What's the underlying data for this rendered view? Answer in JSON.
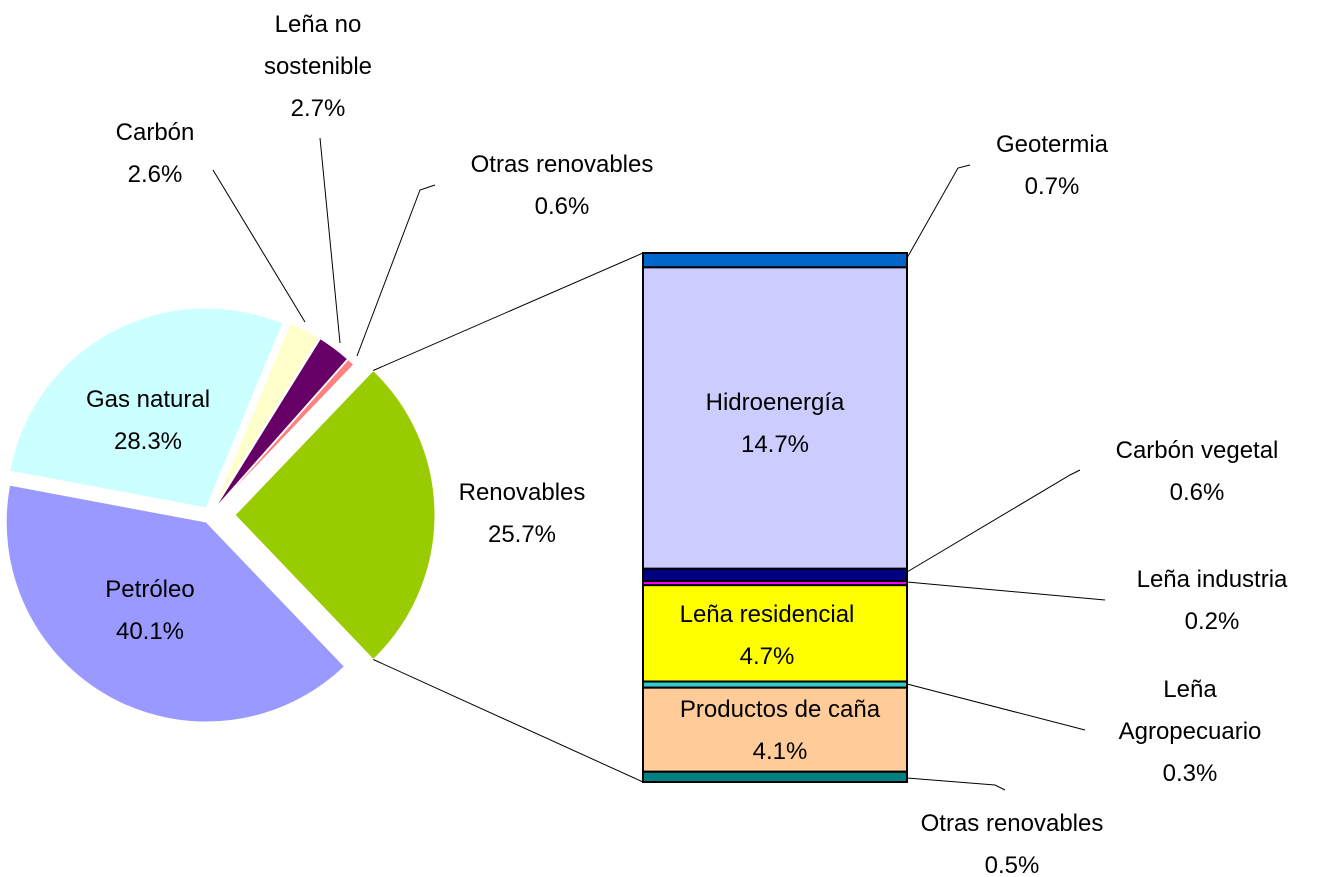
{
  "chart_data": [
    {
      "type": "pie",
      "categories": [
        "Renovables",
        "Otras renovables",
        "Leña no sostenible",
        "Carbón",
        "Gas natural",
        "Petróleo"
      ],
      "values": [
        25.7,
        0.6,
        2.7,
        2.6,
        28.3,
        40.1
      ],
      "value_labels": [
        "25.7%",
        "0.6%",
        "2.7%",
        "2.6%",
        "28.3%",
        "40.1%"
      ],
      "colors": [
        "#99cc00",
        "#ff8080",
        "#660066",
        "#ffffcc",
        "#ccffff",
        "#9999ff"
      ]
    },
    {
      "type": "stacked_bar",
      "categories": [
        "Geotermia",
        "Hidroenergía",
        "Carbón vegetal",
        "Leña industria",
        "Leña residencial",
        "Leña Agropecuario",
        "Productos de caña",
        "Otras renovables"
      ],
      "values": [
        0.7,
        14.7,
        0.6,
        0.2,
        4.7,
        0.3,
        4.1,
        0.5
      ],
      "value_labels": [
        "0.7%",
        "14.7%",
        "0.6%",
        "0.2%",
        "4.7%",
        "0.3%",
        "4.1%",
        "0.5%"
      ],
      "colors": [
        "#0066cc",
        "#ccccff",
        "#000080",
        "#ff00ff",
        "#ffff00",
        "#33cccc",
        "#ffcc99",
        "#008080"
      ]
    }
  ]
}
